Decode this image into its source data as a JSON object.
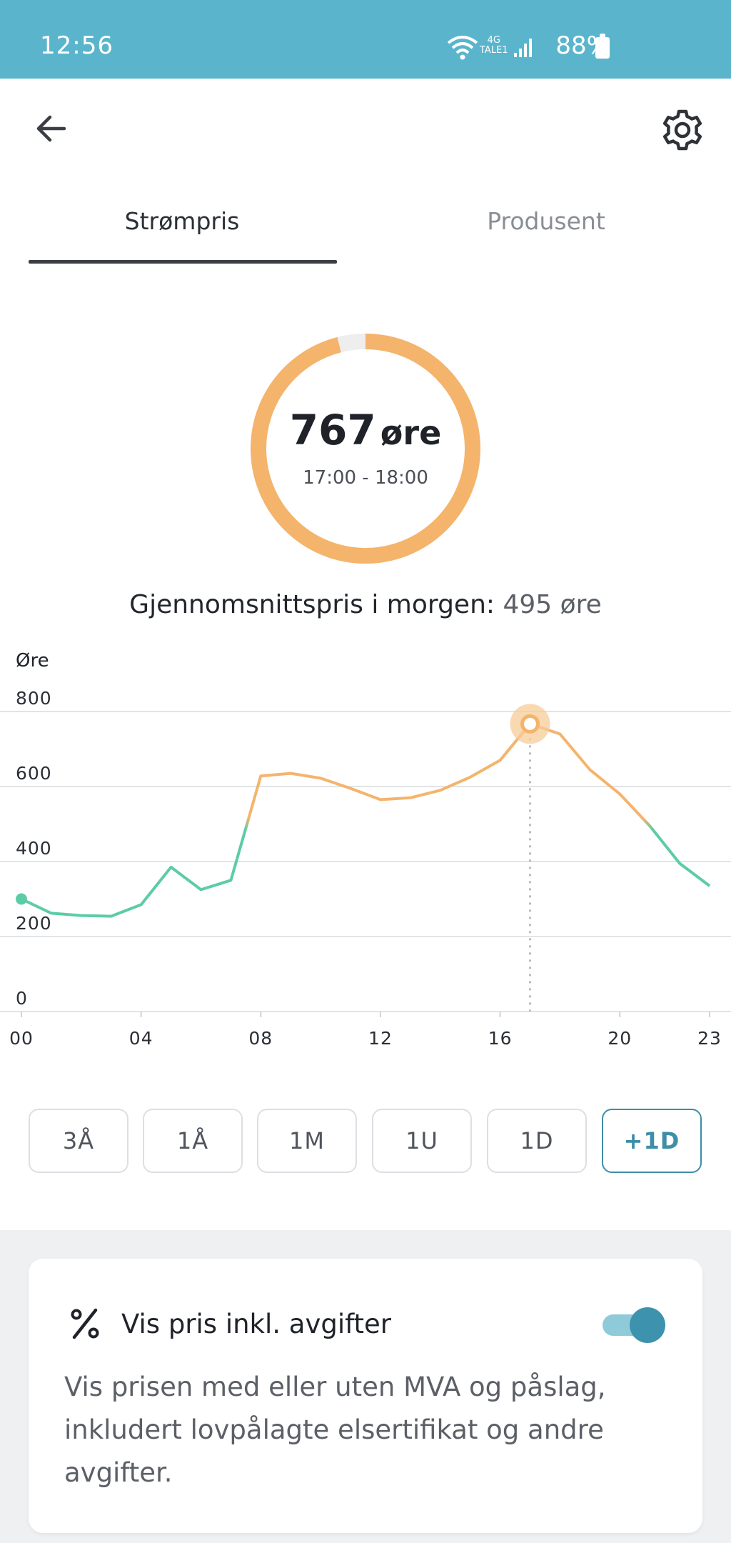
{
  "status_bar": {
    "time": "12:56",
    "network": "4G",
    "network_sub": "TALE1",
    "battery": "88%"
  },
  "header": {
    "back_icon": "arrow-left-icon",
    "settings_icon": "gear-icon"
  },
  "tabs": [
    {
      "label": "Strømpris",
      "active": true
    },
    {
      "label": "Produsent",
      "active": false
    }
  ],
  "current_price": {
    "value": "767",
    "unit": "øre",
    "time_range": "17:00 - 18:00",
    "ring_fraction": 0.96,
    "ring_color": "#f4b46c",
    "ring_track_color": "#eeeeee"
  },
  "average": {
    "label": "Gjennomsnittspris i morgen:",
    "value": "495 øre"
  },
  "chart_data": {
    "type": "line",
    "ylabel": "Øre",
    "ylim": [
      0,
      800
    ],
    "yticks": [
      "800",
      "600",
      "400",
      "200",
      "0"
    ],
    "xlim": [
      0,
      23
    ],
    "xticks": [
      "00",
      "04",
      "08",
      "12",
      "16",
      "20",
      "23"
    ],
    "x": [
      0,
      1,
      2,
      3,
      4,
      5,
      6,
      7,
      8,
      9,
      10,
      11,
      12,
      13,
      14,
      15,
      16,
      17,
      18,
      19,
      20,
      21,
      22,
      23
    ],
    "values": [
      300,
      262,
      256,
      254,
      285,
      385,
      325,
      350,
      628,
      635,
      622,
      595,
      565,
      570,
      590,
      625,
      670,
      767,
      740,
      645,
      580,
      495,
      395,
      335
    ],
    "low_color": "#5ccca6",
    "high_color": "#f4b46c",
    "threshold": 500,
    "highlight_x": 17,
    "grid": true
  },
  "ranges": [
    {
      "label": "3Å",
      "active": false
    },
    {
      "label": "1Å",
      "active": false
    },
    {
      "label": "1M",
      "active": false
    },
    {
      "label": "1U",
      "active": false
    },
    {
      "label": "1D",
      "active": false
    },
    {
      "label": "+1D",
      "active": true
    }
  ],
  "settings_card": {
    "icon": "percent-icon",
    "title": "Vis pris inkl. avgifter",
    "toggle_on": true,
    "description": "Vis prisen med eller uten MVA og påslag, inkludert lovpålagte elsertifikat og andre avgifter."
  }
}
